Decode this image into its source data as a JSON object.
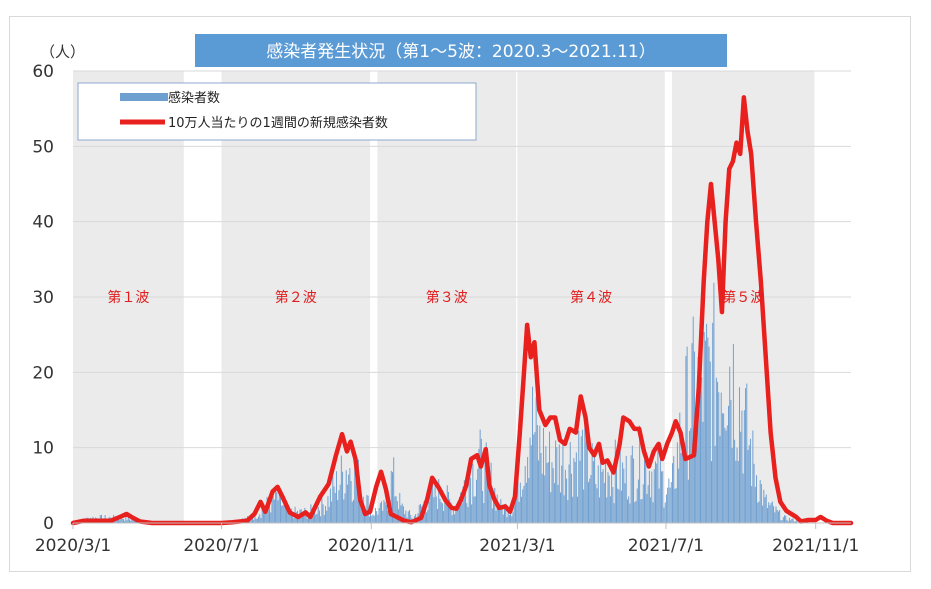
{
  "chart_data": {
    "type": "bar",
    "title": "感染者発生状況（第1～5波：2020.3～2021.11）",
    "unit_label": "（人）",
    "ylim": [
      0,
      60
    ],
    "y_ticks": [
      "0",
      "10",
      "20",
      "30",
      "40",
      "50",
      "60"
    ],
    "x_tick_labels": [
      "2020/3/1",
      "2020/7/1",
      "2020/11/1",
      "2021/3/1",
      "2021/7/1",
      "2021/11/1"
    ],
    "grid": "horizontal",
    "legend_position": "top-left",
    "colors": {
      "bars": "#6e9fd1",
      "line": "#e8201e",
      "title_bg": "#5b9bd5",
      "wave_band": "#ebebeb",
      "wave_label": "#e11d1d"
    },
    "waves": [
      {
        "label": "第１波",
        "start": "2020-03-01",
        "end": "2020-05-31"
      },
      {
        "label": "第２波",
        "start": "2020-07-01",
        "end": "2020-10-31"
      },
      {
        "label": "第３波",
        "start": "2020-11-06",
        "end": "2021-02-28"
      },
      {
        "label": "第４波",
        "start": "2021-03-01",
        "end": "2021-06-30"
      },
      {
        "label": "第５波",
        "start": "2021-07-06",
        "end": "2021-10-31"
      }
    ],
    "series": [
      {
        "name": "感染者数",
        "kind": "bar",
        "peaks": [
          [
            "2020-03-01",
            0
          ],
          [
            "2020-03-15",
            1
          ],
          [
            "2020-04-10",
            1
          ],
          [
            "2020-05-01",
            0
          ],
          [
            "2020-07-01",
            0
          ],
          [
            "2020-07-25",
            1
          ],
          [
            "2020-08-05",
            3
          ],
          [
            "2020-08-15",
            5
          ],
          [
            "2020-08-25",
            2
          ],
          [
            "2020-09-10",
            2
          ],
          [
            "2020-09-25",
            4
          ],
          [
            "2020-10-05",
            8
          ],
          [
            "2020-10-12",
            11
          ],
          [
            "2020-10-18",
            10
          ],
          [
            "2020-10-25",
            6
          ],
          [
            "2020-11-01",
            2
          ],
          [
            "2020-11-12",
            3
          ],
          [
            "2020-11-18",
            9
          ],
          [
            "2020-11-25",
            3
          ],
          [
            "2020-12-05",
            1
          ],
          [
            "2020-12-18",
            5
          ],
          [
            "2020-12-28",
            6
          ],
          [
            "2021-01-08",
            3
          ],
          [
            "2021-01-20",
            9
          ],
          [
            "2021-01-28",
            12
          ],
          [
            "2021-02-05",
            9
          ],
          [
            "2021-02-15",
            3
          ],
          [
            "2021-02-25",
            3
          ],
          [
            "2021-03-05",
            12
          ],
          [
            "2021-03-12",
            20
          ],
          [
            "2021-03-18",
            15
          ],
          [
            "2021-03-28",
            12
          ],
          [
            "2021-04-10",
            12
          ],
          [
            "2021-04-25",
            14
          ],
          [
            "2021-05-05",
            8
          ],
          [
            "2021-05-15",
            11
          ],
          [
            "2021-05-28",
            9
          ],
          [
            "2021-06-10",
            12
          ],
          [
            "2021-06-25",
            9
          ],
          [
            "2021-07-05",
            6
          ],
          [
            "2021-07-15",
            20
          ],
          [
            "2021-07-22",
            25
          ],
          [
            "2021-08-01",
            27
          ],
          [
            "2021-08-12",
            30
          ],
          [
            "2021-08-20",
            33
          ],
          [
            "2021-08-30",
            24
          ],
          [
            "2021-09-10",
            12
          ],
          [
            "2021-09-20",
            4
          ],
          [
            "2021-10-05",
            1
          ],
          [
            "2021-10-25",
            0
          ]
        ]
      },
      {
        "name": "10万人当たりの1週間の新規感染者数",
        "kind": "line",
        "points": [
          [
            "2020-03-01",
            0
          ],
          [
            "2020-03-10",
            0.3
          ],
          [
            "2020-03-20",
            0.3
          ],
          [
            "2020-04-01",
            0.3
          ],
          [
            "2020-04-10",
            0.9
          ],
          [
            "2020-04-14",
            1.2
          ],
          [
            "2020-04-18",
            0.8
          ],
          [
            "2020-04-25",
            0.2
          ],
          [
            "2020-05-05",
            0
          ],
          [
            "2020-06-10",
            0
          ],
          [
            "2020-07-01",
            0
          ],
          [
            "2020-07-10",
            0.1
          ],
          [
            "2020-07-22",
            0.3
          ],
          [
            "2020-07-28",
            1.2
          ],
          [
            "2020-08-02",
            2.8
          ],
          [
            "2020-08-06",
            1.5
          ],
          [
            "2020-08-12",
            4.2
          ],
          [
            "2020-08-16",
            4.8
          ],
          [
            "2020-08-20",
            3.5
          ],
          [
            "2020-08-26",
            1.4
          ],
          [
            "2020-09-02",
            0.8
          ],
          [
            "2020-09-08",
            1.4
          ],
          [
            "2020-09-12",
            0.8
          ],
          [
            "2020-09-20",
            3.5
          ],
          [
            "2020-09-27",
            5.2
          ],
          [
            "2020-10-03",
            9
          ],
          [
            "2020-10-08",
            11.8
          ],
          [
            "2020-10-12",
            9.5
          ],
          [
            "2020-10-15",
            10.8
          ],
          [
            "2020-10-19",
            8.5
          ],
          [
            "2020-10-23",
            3
          ],
          [
            "2020-10-27",
            1.2
          ],
          [
            "2020-10-31",
            1.5
          ],
          [
            "2020-11-05",
            4.8
          ],
          [
            "2020-11-09",
            6.8
          ],
          [
            "2020-11-13",
            4.5
          ],
          [
            "2020-11-17",
            1.2
          ],
          [
            "2020-11-22",
            0.8
          ],
          [
            "2020-11-28",
            0.3
          ],
          [
            "2020-12-04",
            0.1
          ],
          [
            "2020-12-12",
            0.7
          ],
          [
            "2020-12-17",
            3.2
          ],
          [
            "2020-12-21",
            6
          ],
          [
            "2020-12-26",
            4.8
          ],
          [
            "2021-01-01",
            3
          ],
          [
            "2021-01-06",
            2
          ],
          [
            "2021-01-10",
            1.9
          ],
          [
            "2021-01-14",
            3.2
          ],
          [
            "2021-01-18",
            5
          ],
          [
            "2021-01-22",
            8.5
          ],
          [
            "2021-01-27",
            9
          ],
          [
            "2021-01-30",
            7.5
          ],
          [
            "2021-02-03",
            9.8
          ],
          [
            "2021-02-06",
            5
          ],
          [
            "2021-02-10",
            3.2
          ],
          [
            "2021-02-14",
            2
          ],
          [
            "2021-02-19",
            2.2
          ],
          [
            "2021-02-23",
            1.5
          ],
          [
            "2021-02-27",
            3.5
          ],
          [
            "2021-03-03",
            12
          ],
          [
            "2021-03-06",
            19
          ],
          [
            "2021-03-09",
            26.3
          ],
          [
            "2021-03-12",
            22
          ],
          [
            "2021-03-15",
            24
          ],
          [
            "2021-03-19",
            15
          ],
          [
            "2021-03-24",
            13
          ],
          [
            "2021-03-28",
            14
          ],
          [
            "2021-04-01",
            14
          ],
          [
            "2021-04-05",
            11
          ],
          [
            "2021-04-09",
            10.5
          ],
          [
            "2021-04-13",
            12.5
          ],
          [
            "2021-04-18",
            12
          ],
          [
            "2021-04-22",
            16.8
          ],
          [
            "2021-04-26",
            14
          ],
          [
            "2021-04-29",
            10
          ],
          [
            "2021-05-03",
            9
          ],
          [
            "2021-05-07",
            10.5
          ],
          [
            "2021-05-10",
            8
          ],
          [
            "2021-05-14",
            8.3
          ],
          [
            "2021-05-19",
            6.7
          ],
          [
            "2021-05-24",
            10.5
          ],
          [
            "2021-05-27",
            14
          ],
          [
            "2021-06-01",
            13.5
          ],
          [
            "2021-06-05",
            12.5
          ],
          [
            "2021-06-09",
            12.5
          ],
          [
            "2021-06-13",
            9.5
          ],
          [
            "2021-06-17",
            7.5
          ],
          [
            "2021-06-21",
            9.5
          ],
          [
            "2021-06-25",
            10.5
          ],
          [
            "2021-06-28",
            8.5
          ],
          [
            "2021-07-02",
            10.5
          ],
          [
            "2021-07-06",
            12
          ],
          [
            "2021-07-09",
            13.5
          ],
          [
            "2021-07-13",
            12
          ],
          [
            "2021-07-17",
            8.5
          ],
          [
            "2021-07-20",
            8.7
          ],
          [
            "2021-07-24",
            9
          ],
          [
            "2021-07-28",
            18
          ],
          [
            "2021-08-01",
            32
          ],
          [
            "2021-08-04",
            40
          ],
          [
            "2021-08-07",
            45
          ],
          [
            "2021-08-10",
            40
          ],
          [
            "2021-08-13",
            35
          ],
          [
            "2021-08-16",
            28
          ],
          [
            "2021-08-19",
            40
          ],
          [
            "2021-08-22",
            47
          ],
          [
            "2021-08-25",
            48
          ],
          [
            "2021-08-28",
            50.5
          ],
          [
            "2021-08-31",
            49
          ],
          [
            "2021-09-03",
            56.5
          ],
          [
            "2021-09-06",
            52
          ],
          [
            "2021-09-09",
            49
          ],
          [
            "2021-09-13",
            40
          ],
          [
            "2021-09-17",
            32
          ],
          [
            "2021-09-21",
            22
          ],
          [
            "2021-09-25",
            12
          ],
          [
            "2021-09-29",
            6
          ],
          [
            "2021-10-03",
            2.8
          ],
          [
            "2021-10-08",
            1.6
          ],
          [
            "2021-10-12",
            1.2
          ],
          [
            "2021-10-16",
            0.8
          ],
          [
            "2021-10-20",
            0.2
          ],
          [
            "2021-10-26",
            0.4
          ],
          [
            "2021-11-01",
            0.4
          ],
          [
            "2021-11-05",
            0.8
          ],
          [
            "2021-11-10",
            0.3
          ],
          [
            "2021-11-15",
            0
          ],
          [
            "2021-11-30",
            0
          ]
        ]
      }
    ]
  }
}
